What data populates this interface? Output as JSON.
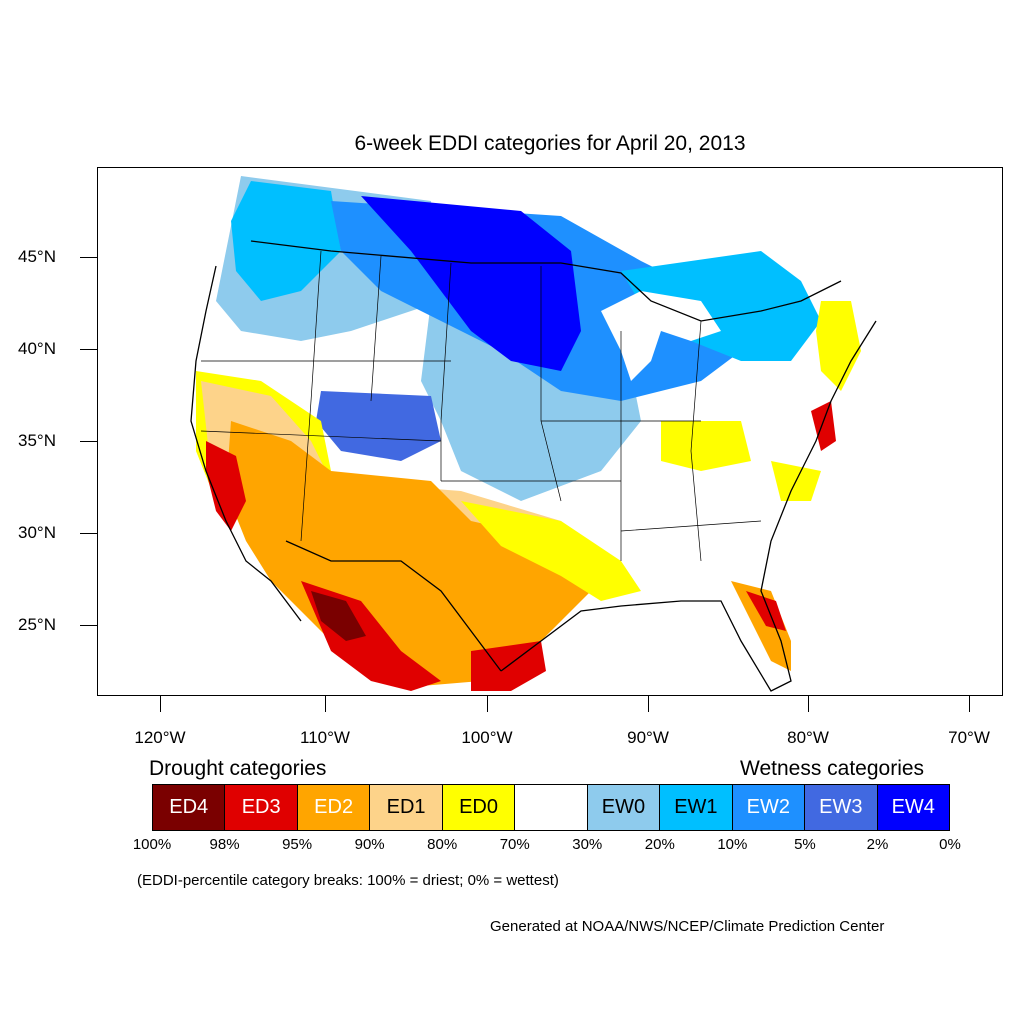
{
  "title": "6-week EDDI categories for April 20, 2013",
  "lat_labels": [
    "45°N",
    "40°N",
    "35°N",
    "30°N",
    "25°N"
  ],
  "lon_labels": [
    "120°W",
    "110°W",
    "100°W",
    "90°W",
    "80°W",
    "70°W"
  ],
  "legend": {
    "drought_heading": "Drought categories",
    "wetness_heading": "Wetness categories",
    "categories": [
      {
        "label": "ED4",
        "color": "#7a0000",
        "text_color": "#ffffff"
      },
      {
        "label": "ED3",
        "color": "#e00000",
        "text_color": "#ffffff"
      },
      {
        "label": "ED2",
        "color": "#ffa500",
        "text_color": "#ffffff"
      },
      {
        "label": "ED1",
        "color": "#fdd38a",
        "text_color": "#000000"
      },
      {
        "label": "ED0",
        "color": "#ffff00",
        "text_color": "#000000"
      },
      {
        "label": "",
        "color": "#ffffff",
        "text_color": "#000000"
      },
      {
        "label": "EW0",
        "color": "#8ecbed",
        "text_color": "#000000"
      },
      {
        "label": "EW1",
        "color": "#00bfff",
        "text_color": "#000000"
      },
      {
        "label": "EW2",
        "color": "#1e90ff",
        "text_color": "#ffffff"
      },
      {
        "label": "EW3",
        "color": "#4169e1",
        "text_color": "#ffffff"
      },
      {
        "label": "EW4",
        "color": "#0000ff",
        "text_color": "#ffffff"
      }
    ],
    "percentiles": [
      "100%",
      "98%",
      "95%",
      "90%",
      "80%",
      "70%",
      "30%",
      "20%",
      "10%",
      "5%",
      "2%",
      "0%"
    ]
  },
  "note": "(EDDI-percentile category breaks: 100% = driest; 0% = wettest)",
  "credit": "Generated at NOAA/NWS/NCEP/Climate Prediction Center"
}
